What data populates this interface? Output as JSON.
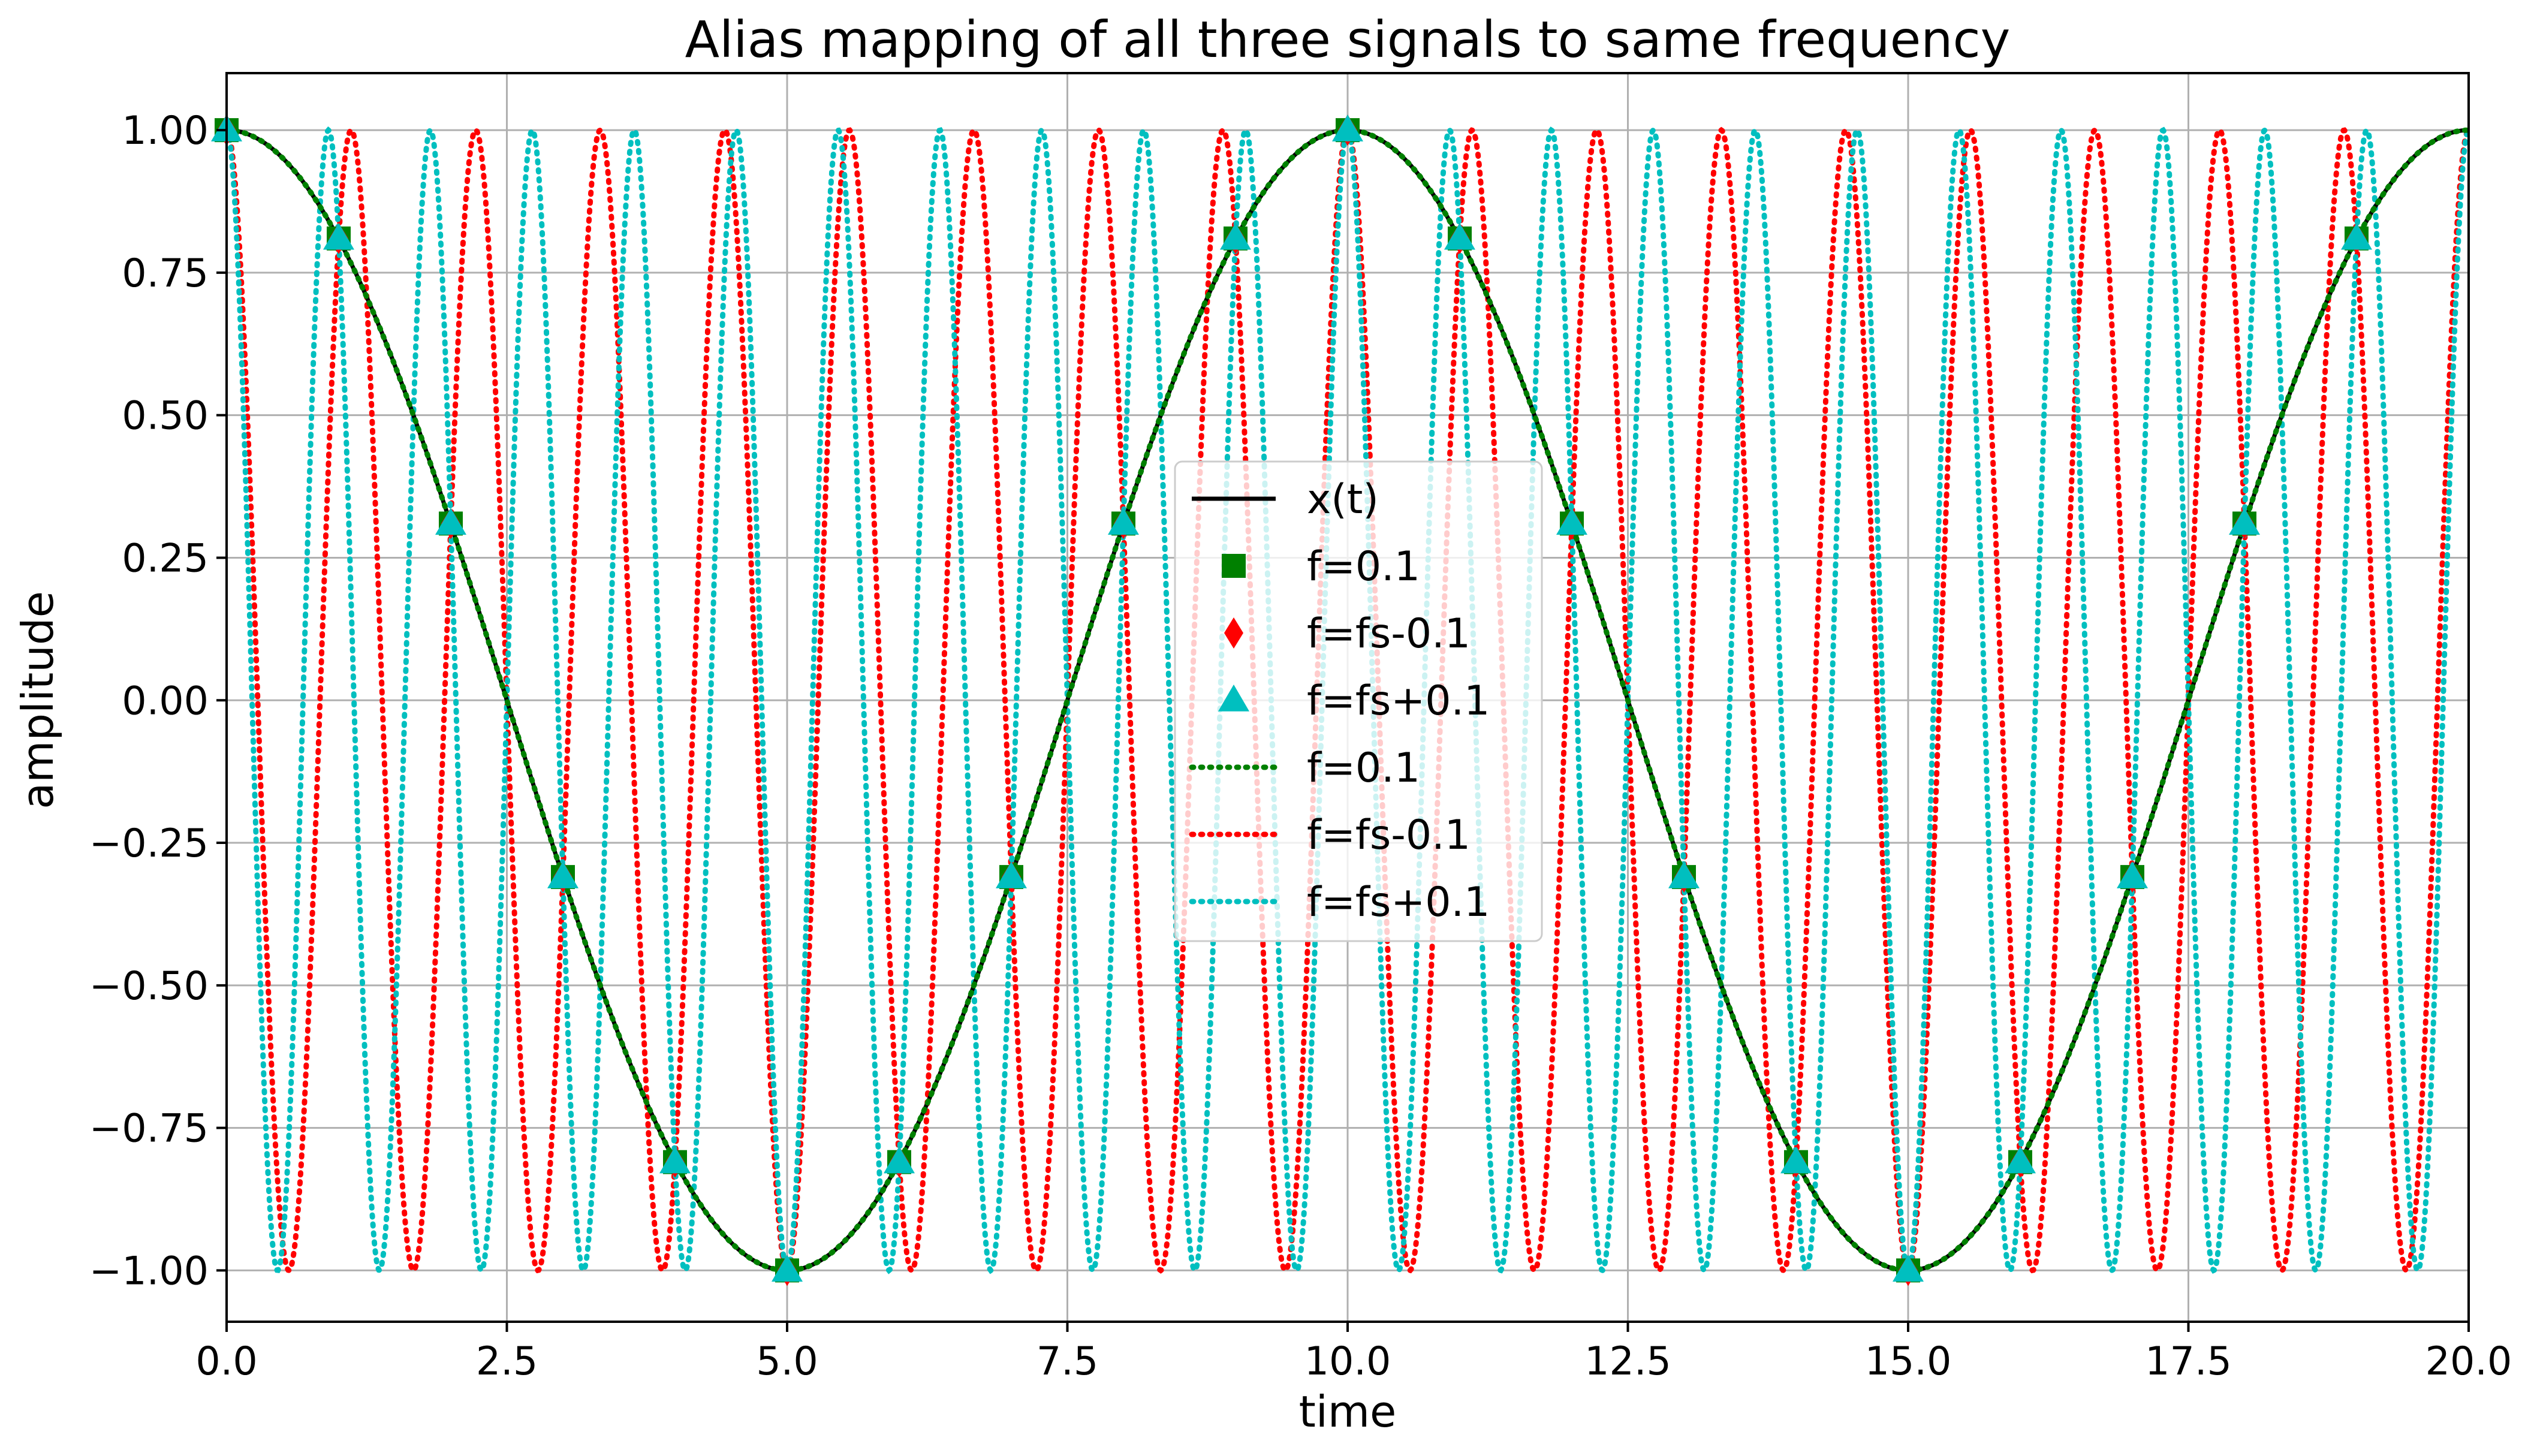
{
  "chart_data": {
    "type": "line",
    "title": "Alias mapping of all three signals to same frequency",
    "xlabel": "time",
    "ylabel": "amplitude",
    "xlim": [
      0,
      20
    ],
    "ylim": [
      -1.09,
      1.1
    ],
    "grid": true,
    "legend_position": "center",
    "x_ticks": [
      0,
      2.5,
      5,
      7.5,
      10,
      12.5,
      15,
      17.5,
      20
    ],
    "x_tick_labels": [
      "0.0",
      "2.5",
      "5.0",
      "7.5",
      "10.0",
      "12.5",
      "15.0",
      "17.5",
      "20.0"
    ],
    "y_ticks": [
      1,
      0.75,
      0.5,
      0.25,
      0,
      -0.25,
      -0.5,
      -0.75,
      -1
    ],
    "y_tick_labels": [
      "1.00",
      "0.75",
      "0.50",
      "0.25",
      "0.00",
      "−0.25",
      "−0.50",
      "−0.75",
      "−1.00"
    ],
    "sampling_rate_fs": 1,
    "series": [
      {
        "name": "x(t)",
        "kind": "line",
        "style": "solid",
        "color": "#000000",
        "function": "cos",
        "frequency": 0.1,
        "t_range": [
          0,
          20
        ]
      },
      {
        "name": "f=0.1",
        "kind": "marker",
        "marker": "square",
        "color": "#008000",
        "frequency": 0.1,
        "x": [
          0,
          1,
          2,
          3,
          4,
          5,
          6,
          7,
          8,
          9,
          10,
          11,
          12,
          13,
          14,
          15,
          16,
          17,
          18,
          19
        ],
        "y": [
          1,
          0.81,
          0.31,
          -0.31,
          -0.81,
          -1,
          -0.81,
          -0.31,
          0.31,
          0.81,
          1,
          0.81,
          0.31,
          -0.31,
          -0.81,
          -1,
          -0.81,
          -0.31,
          0.31,
          0.81
        ]
      },
      {
        "name": "f=fs-0.1",
        "kind": "marker",
        "marker": "diamond",
        "color": "#ff0000",
        "frequency": 0.9,
        "x": [
          0,
          1,
          2,
          3,
          4,
          5,
          6,
          7,
          8,
          9,
          10,
          11,
          12,
          13,
          14,
          15,
          16,
          17,
          18,
          19
        ],
        "y": [
          1,
          0.81,
          0.31,
          -0.31,
          -0.81,
          -1,
          -0.81,
          -0.31,
          0.31,
          0.81,
          1,
          0.81,
          0.31,
          -0.31,
          -0.81,
          -1,
          -0.81,
          -0.31,
          0.31,
          0.81
        ]
      },
      {
        "name": "f=fs+0.1",
        "kind": "marker",
        "marker": "triangle",
        "color": "#00bfbf",
        "frequency": 1.1,
        "x": [
          0,
          1,
          2,
          3,
          4,
          5,
          6,
          7,
          8,
          9,
          10,
          11,
          12,
          13,
          14,
          15,
          16,
          17,
          18,
          19
        ],
        "y": [
          1,
          0.81,
          0.31,
          -0.31,
          -0.81,
          -1,
          -0.81,
          -0.31,
          0.31,
          0.81,
          1,
          0.81,
          0.31,
          -0.31,
          -0.81,
          -1,
          -0.81,
          -0.31,
          0.31,
          0.81
        ]
      },
      {
        "name": "f=0.1",
        "kind": "line",
        "style": "dotted",
        "color": "#008000",
        "function": "cos",
        "frequency": 0.1,
        "t_range": [
          0,
          20
        ]
      },
      {
        "name": "f=fs-0.1",
        "kind": "line",
        "style": "dotted",
        "color": "#ff0000",
        "function": "cos",
        "frequency": 0.9,
        "t_range": [
          0,
          20
        ]
      },
      {
        "name": "f=fs+0.1",
        "kind": "line",
        "style": "dotted",
        "color": "#00bfbf",
        "function": "cos",
        "frequency": 1.1,
        "t_range": [
          0,
          20
        ]
      }
    ]
  }
}
